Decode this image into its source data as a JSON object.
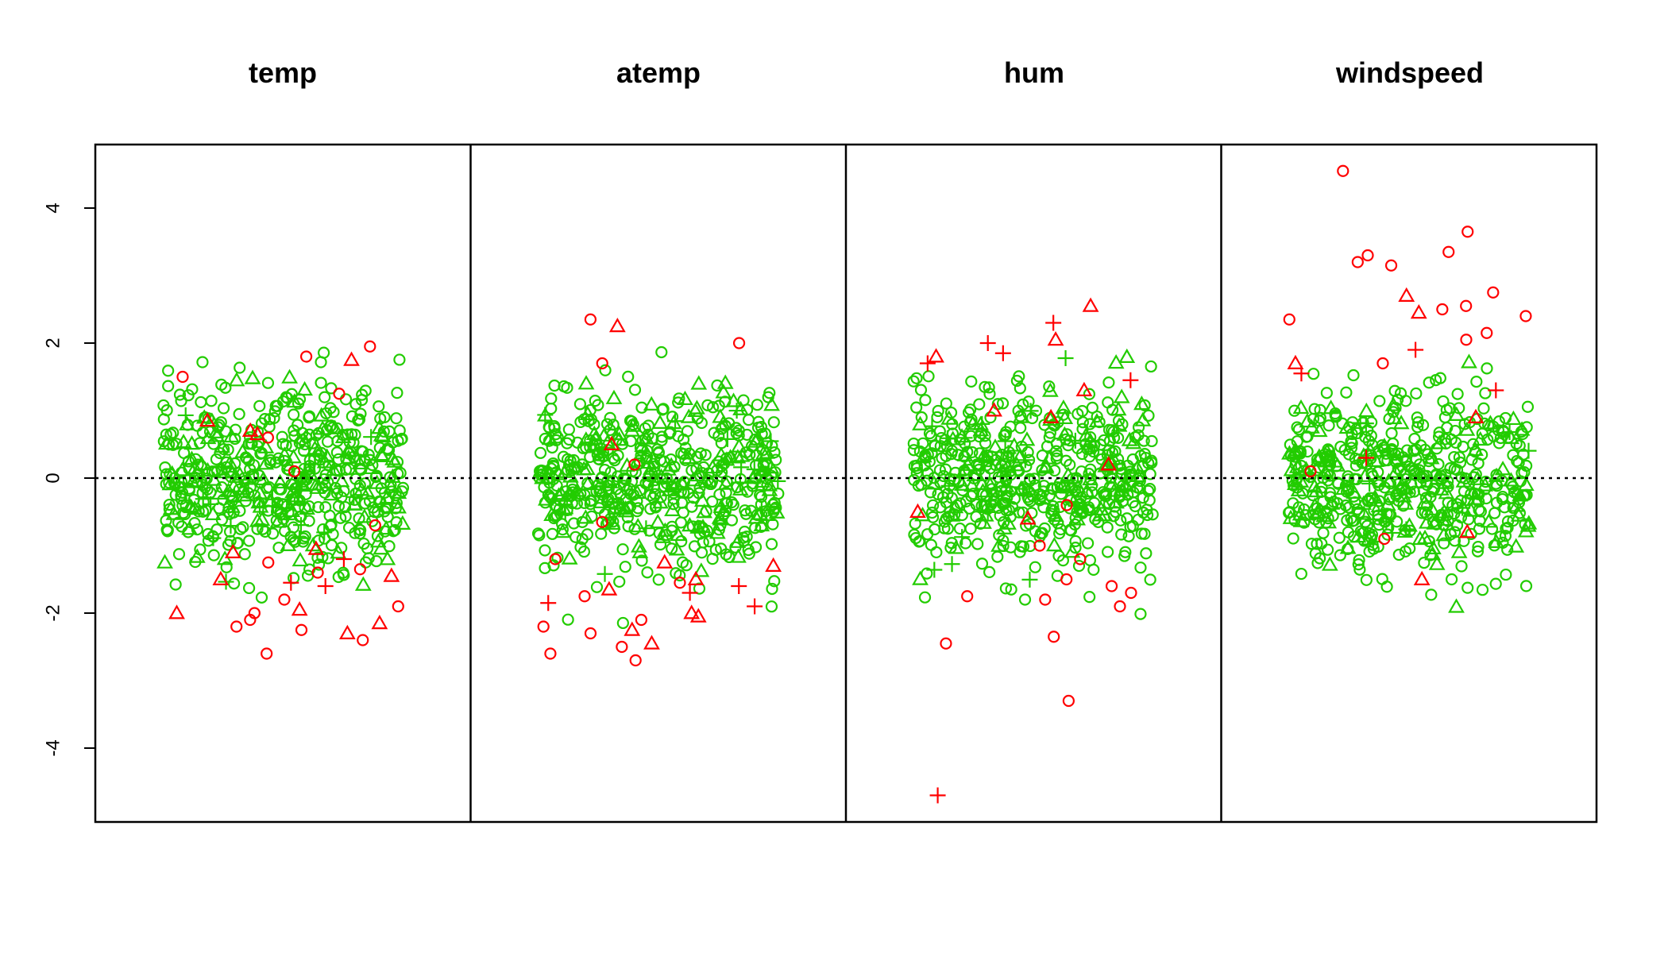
{
  "chart_data": {
    "type": "scatter",
    "panels": [
      {
        "title": "temp"
      },
      {
        "title": "atemp"
      },
      {
        "title": "hum"
      },
      {
        "title": "windspeed"
      }
    ],
    "ylim": [
      -5,
      5
    ],
    "yticks": [
      -4,
      -2,
      0,
      2,
      4
    ],
    "reference_line": {
      "y": 0,
      "style": "dotted"
    },
    "colors": {
      "in_range": "#22cc00",
      "outlier": "#ff0000"
    },
    "marker_shapes": [
      "circle",
      "triangle",
      "plus"
    ],
    "grid": false,
    "series": [
      {
        "panel": "temp",
        "y_range_green": [
          -2.4,
          2.05
        ],
        "red_points": [
          {
            "y": 1.95,
            "shape": "circle"
          },
          {
            "y": 1.8,
            "shape": "circle"
          },
          {
            "y": 1.75,
            "shape": "triangle"
          },
          {
            "y": 1.5,
            "shape": "circle"
          },
          {
            "y": 1.25,
            "shape": "circle"
          },
          {
            "y": 0.85,
            "shape": "triangle"
          },
          {
            "y": 0.7,
            "shape": "triangle"
          },
          {
            "y": 0.65,
            "shape": "triangle"
          },
          {
            "y": 0.6,
            "shape": "circle"
          },
          {
            "y": 0.1,
            "shape": "circle"
          },
          {
            "y": -0.7,
            "shape": "circle"
          },
          {
            "y": -1.05,
            "shape": "triangle"
          },
          {
            "y": -1.1,
            "shape": "triangle"
          },
          {
            "y": -1.2,
            "shape": "plus"
          },
          {
            "y": -1.25,
            "shape": "circle"
          },
          {
            "y": -1.35,
            "shape": "circle"
          },
          {
            "y": -1.4,
            "shape": "circle"
          },
          {
            "y": -1.45,
            "shape": "triangle"
          },
          {
            "y": -1.5,
            "shape": "triangle"
          },
          {
            "y": -1.55,
            "shape": "plus"
          },
          {
            "y": -1.6,
            "shape": "plus"
          },
          {
            "y": -1.8,
            "shape": "circle"
          },
          {
            "y": -1.9,
            "shape": "circle"
          },
          {
            "y": -1.95,
            "shape": "triangle"
          },
          {
            "y": -2.0,
            "shape": "triangle"
          },
          {
            "y": -2.0,
            "shape": "circle"
          },
          {
            "y": -2.1,
            "shape": "circle"
          },
          {
            "y": -2.15,
            "shape": "triangle"
          },
          {
            "y": -2.2,
            "shape": "circle"
          },
          {
            "y": -2.25,
            "shape": "circle"
          },
          {
            "y": -2.3,
            "shape": "triangle"
          },
          {
            "y": -2.4,
            "shape": "circle"
          },
          {
            "y": -2.6,
            "shape": "circle"
          }
        ]
      },
      {
        "panel": "atemp",
        "y_range_green": [
          -2.5,
          2.1
        ],
        "red_points": [
          {
            "y": 2.35,
            "shape": "circle"
          },
          {
            "y": 2.25,
            "shape": "triangle"
          },
          {
            "y": 2.0,
            "shape": "circle"
          },
          {
            "y": 1.7,
            "shape": "circle"
          },
          {
            "y": 0.5,
            "shape": "triangle"
          },
          {
            "y": 0.2,
            "shape": "circle"
          },
          {
            "y": -0.65,
            "shape": "circle"
          },
          {
            "y": -1.2,
            "shape": "circle"
          },
          {
            "y": -1.25,
            "shape": "triangle"
          },
          {
            "y": -1.3,
            "shape": "triangle"
          },
          {
            "y": -1.5,
            "shape": "triangle"
          },
          {
            "y": -1.55,
            "shape": "circle"
          },
          {
            "y": -1.6,
            "shape": "plus"
          },
          {
            "y": -1.65,
            "shape": "triangle"
          },
          {
            "y": -1.7,
            "shape": "plus"
          },
          {
            "y": -1.75,
            "shape": "circle"
          },
          {
            "y": -1.85,
            "shape": "plus"
          },
          {
            "y": -1.9,
            "shape": "plus"
          },
          {
            "y": -2.0,
            "shape": "triangle"
          },
          {
            "y": -2.05,
            "shape": "triangle"
          },
          {
            "y": -2.1,
            "shape": "circle"
          },
          {
            "y": -2.2,
            "shape": "circle"
          },
          {
            "y": -2.25,
            "shape": "triangle"
          },
          {
            "y": -2.3,
            "shape": "circle"
          },
          {
            "y": -2.45,
            "shape": "triangle"
          },
          {
            "y": -2.5,
            "shape": "circle"
          },
          {
            "y": -2.6,
            "shape": "circle"
          },
          {
            "y": -2.7,
            "shape": "circle"
          }
        ]
      },
      {
        "panel": "hum",
        "y_range_green": [
          -2.8,
          2.5
        ],
        "red_points": [
          {
            "y": 2.55,
            "shape": "triangle"
          },
          {
            "y": 2.3,
            "shape": "plus"
          },
          {
            "y": 2.05,
            "shape": "triangle"
          },
          {
            "y": 2.0,
            "shape": "plus"
          },
          {
            "y": 1.85,
            "shape": "plus"
          },
          {
            "y": 1.8,
            "shape": "triangle"
          },
          {
            "y": 1.7,
            "shape": "plus"
          },
          {
            "y": 1.45,
            "shape": "plus"
          },
          {
            "y": 1.3,
            "shape": "triangle"
          },
          {
            "y": 1.0,
            "shape": "triangle"
          },
          {
            "y": 0.9,
            "shape": "triangle"
          },
          {
            "y": 0.2,
            "shape": "triangle"
          },
          {
            "y": -0.4,
            "shape": "circle"
          },
          {
            "y": -0.5,
            "shape": "triangle"
          },
          {
            "y": -0.6,
            "shape": "triangle"
          },
          {
            "y": -1.0,
            "shape": "circle"
          },
          {
            "y": -1.2,
            "shape": "circle"
          },
          {
            "y": -1.5,
            "shape": "circle"
          },
          {
            "y": -1.6,
            "shape": "circle"
          },
          {
            "y": -1.7,
            "shape": "circle"
          },
          {
            "y": -1.75,
            "shape": "circle"
          },
          {
            "y": -1.8,
            "shape": "circle"
          },
          {
            "y": -1.9,
            "shape": "circle"
          },
          {
            "y": -2.35,
            "shape": "circle"
          },
          {
            "y": -2.45,
            "shape": "circle"
          },
          {
            "y": -3.3,
            "shape": "circle"
          },
          {
            "y": -4.7,
            "shape": "plus"
          }
        ]
      },
      {
        "panel": "windspeed",
        "y_range_green": [
          -2.25,
          3.35
        ],
        "red_points": [
          {
            "y": 4.55,
            "shape": "circle"
          },
          {
            "y": 3.65,
            "shape": "circle"
          },
          {
            "y": 3.35,
            "shape": "circle"
          },
          {
            "y": 3.3,
            "shape": "circle"
          },
          {
            "y": 3.2,
            "shape": "circle"
          },
          {
            "y": 3.15,
            "shape": "circle"
          },
          {
            "y": 2.75,
            "shape": "circle"
          },
          {
            "y": 2.7,
            "shape": "triangle"
          },
          {
            "y": 2.55,
            "shape": "circle"
          },
          {
            "y": 2.5,
            "shape": "circle"
          },
          {
            "y": 2.45,
            "shape": "triangle"
          },
          {
            "y": 2.4,
            "shape": "circle"
          },
          {
            "y": 2.35,
            "shape": "circle"
          },
          {
            "y": 2.15,
            "shape": "circle"
          },
          {
            "y": 2.05,
            "shape": "circle"
          },
          {
            "y": 1.9,
            "shape": "plus"
          },
          {
            "y": 1.7,
            "shape": "triangle"
          },
          {
            "y": 1.7,
            "shape": "circle"
          },
          {
            "y": 1.55,
            "shape": "plus"
          },
          {
            "y": 1.3,
            "shape": "plus"
          },
          {
            "y": 0.9,
            "shape": "triangle"
          },
          {
            "y": 0.3,
            "shape": "plus"
          },
          {
            "y": 0.1,
            "shape": "circle"
          },
          {
            "y": -0.8,
            "shape": "triangle"
          },
          {
            "y": -0.9,
            "shape": "circle"
          },
          {
            "y": -1.5,
            "shape": "triangle"
          }
        ]
      }
    ]
  }
}
